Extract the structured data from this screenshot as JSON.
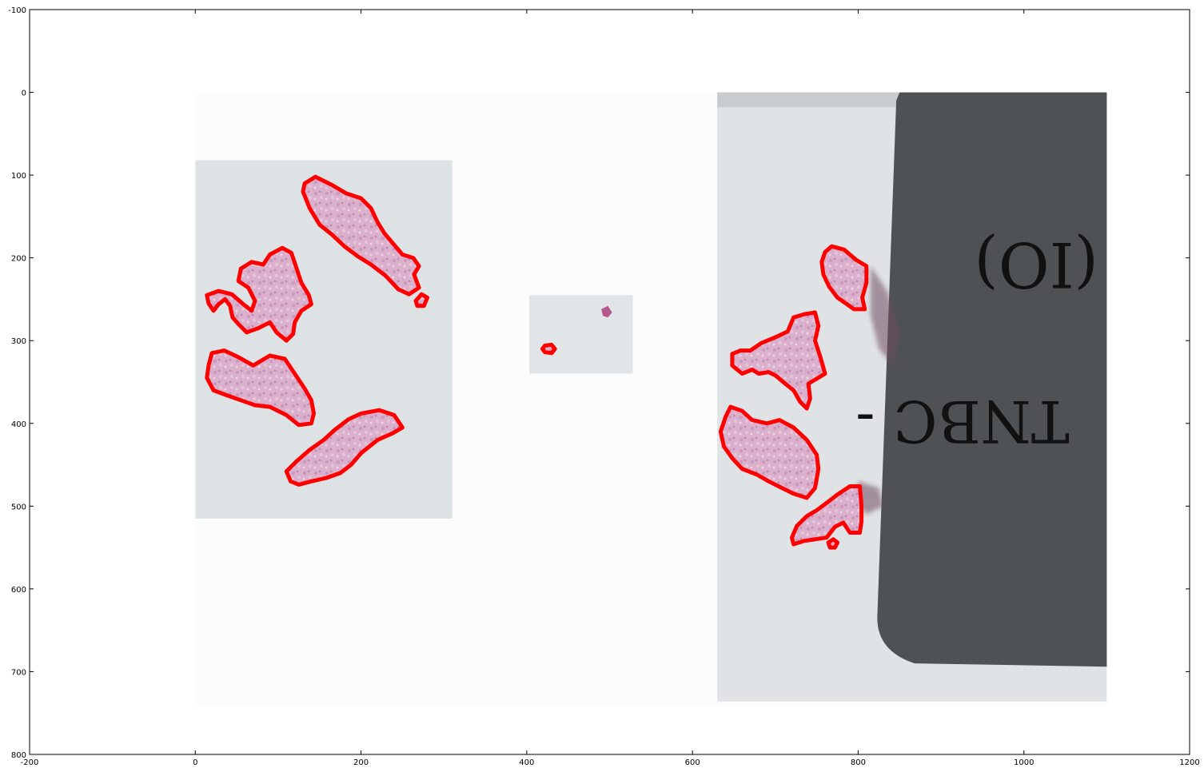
{
  "chart_data": {
    "type": "image",
    "title": "",
    "xlabel": "",
    "ylabel": "",
    "xlim": [
      -200,
      1200
    ],
    "ylim": [
      800,
      -100
    ],
    "x_ticks": [
      -200,
      0,
      200,
      400,
      600,
      800,
      1000,
      1200
    ],
    "y_ticks": [
      -100,
      0,
      100,
      200,
      300,
      400,
      500,
      600,
      700,
      800
    ],
    "grid": false,
    "contour_color": "#ff0000",
    "slide_label_text": "(IO)",
    "slide_label_text_2": "TNBC -",
    "images": [
      {
        "name": "left-tissue-image",
        "extent": [
          0,
          310,
          82,
          515
        ]
      },
      {
        "name": "middle-tissue-image",
        "extent": [
          403,
          528,
          245,
          340
        ]
      },
      {
        "name": "right-slide-image",
        "extent": [
          630,
          1100,
          0,
          736
        ]
      }
    ],
    "contours": [
      {
        "name": "left-contour-1",
        "points": [
          [
            132,
            110
          ],
          [
            145,
            102
          ],
          [
            165,
            112
          ],
          [
            182,
            122
          ],
          [
            200,
            128
          ],
          [
            212,
            140
          ],
          [
            220,
            157
          ],
          [
            228,
            170
          ],
          [
            238,
            182
          ],
          [
            250,
            196
          ],
          [
            263,
            200
          ],
          [
            270,
            210
          ],
          [
            264,
            220
          ],
          [
            270,
            236
          ],
          [
            258,
            244
          ],
          [
            245,
            238
          ],
          [
            230,
            222
          ],
          [
            212,
            208
          ],
          [
            196,
            198
          ],
          [
            180,
            186
          ],
          [
            165,
            172
          ],
          [
            150,
            160
          ],
          [
            138,
            140
          ],
          [
            130,
            120
          ]
        ]
      },
      {
        "name": "left-contour-2",
        "points": [
          [
            266,
            252
          ],
          [
            273,
            244
          ],
          [
            280,
            248
          ],
          [
            276,
            258
          ],
          [
            268,
            258
          ]
        ]
      },
      {
        "name": "left-contour-3",
        "points": [
          [
            55,
            213
          ],
          [
            68,
            205
          ],
          [
            82,
            208
          ],
          [
            90,
            196
          ],
          [
            105,
            188
          ],
          [
            116,
            194
          ],
          [
            122,
            212
          ],
          [
            128,
            230
          ],
          [
            137,
            245
          ],
          [
            140,
            256
          ],
          [
            128,
            264
          ],
          [
            120,
            278
          ],
          [
            118,
            292
          ],
          [
            110,
            300
          ],
          [
            98,
            290
          ],
          [
            90,
            278
          ],
          [
            76,
            285
          ],
          [
            62,
            290
          ],
          [
            52,
            280
          ],
          [
            45,
            272
          ],
          [
            42,
            258
          ],
          [
            36,
            250
          ],
          [
            28,
            256
          ],
          [
            22,
            264
          ],
          [
            16,
            255
          ],
          [
            14,
            245
          ],
          [
            28,
            240
          ],
          [
            44,
            244
          ],
          [
            58,
            256
          ],
          [
            68,
            264
          ],
          [
            72,
            252
          ],
          [
            64,
            236
          ],
          [
            52,
            228
          ]
        ]
      },
      {
        "name": "left-contour-4",
        "points": [
          [
            20,
            315
          ],
          [
            35,
            312
          ],
          [
            52,
            320
          ],
          [
            70,
            330
          ],
          [
            90,
            318
          ],
          [
            108,
            322
          ],
          [
            120,
            340
          ],
          [
            132,
            358
          ],
          [
            140,
            372
          ],
          [
            143,
            388
          ],
          [
            140,
            400
          ],
          [
            125,
            402
          ],
          [
            110,
            390
          ],
          [
            90,
            380
          ],
          [
            72,
            378
          ],
          [
            55,
            372
          ],
          [
            38,
            366
          ],
          [
            22,
            360
          ],
          [
            14,
            345
          ],
          [
            16,
            330
          ]
        ]
      },
      {
        "name": "left-contour-5",
        "points": [
          [
            115,
            470
          ],
          [
            110,
            458
          ],
          [
            122,
            446
          ],
          [
            138,
            432
          ],
          [
            155,
            420
          ],
          [
            168,
            408
          ],
          [
            185,
            395
          ],
          [
            200,
            388
          ],
          [
            222,
            384
          ],
          [
            240,
            390
          ],
          [
            250,
            405
          ],
          [
            238,
            412
          ],
          [
            220,
            420
          ],
          [
            200,
            436
          ],
          [
            188,
            450
          ],
          [
            175,
            460
          ],
          [
            158,
            466
          ],
          [
            140,
            470
          ],
          [
            125,
            474
          ]
        ]
      },
      {
        "name": "middle-contour",
        "points": [
          [
            422,
            306
          ],
          [
            430,
            305
          ],
          [
            434,
            310
          ],
          [
            430,
            315
          ],
          [
            422,
            314
          ],
          [
            419,
            310
          ]
        ]
      },
      {
        "name": "right-contour-1",
        "points": [
          [
            760,
            193
          ],
          [
            768,
            186
          ],
          [
            783,
            190
          ],
          [
            797,
            202
          ],
          [
            810,
            210
          ],
          [
            810,
            230
          ],
          [
            805,
            248
          ],
          [
            808,
            262
          ],
          [
            795,
            262
          ],
          [
            785,
            255
          ],
          [
            775,
            248
          ],
          [
            765,
            235
          ],
          [
            758,
            220
          ],
          [
            756,
            205
          ]
        ]
      },
      {
        "name": "right-contour-2",
        "points": [
          [
            670,
            312
          ],
          [
            683,
            303
          ],
          [
            700,
            296
          ],
          [
            715,
            289
          ],
          [
            722,
            272
          ],
          [
            735,
            268
          ],
          [
            748,
            266
          ],
          [
            752,
            282
          ],
          [
            748,
            300
          ],
          [
            755,
            322
          ],
          [
            760,
            340
          ],
          [
            750,
            346
          ],
          [
            740,
            352
          ],
          [
            742,
            370
          ],
          [
            738,
            382
          ],
          [
            730,
            374
          ],
          [
            722,
            360
          ],
          [
            712,
            352
          ],
          [
            700,
            342
          ],
          [
            692,
            338
          ],
          [
            680,
            340
          ],
          [
            672,
            335
          ],
          [
            660,
            340
          ],
          [
            648,
            330
          ],
          [
            648,
            316
          ],
          [
            658,
            312
          ]
        ]
      },
      {
        "name": "right-contour-3",
        "points": [
          [
            646,
            380
          ],
          [
            660,
            385
          ],
          [
            672,
            396
          ],
          [
            690,
            400
          ],
          [
            705,
            396
          ],
          [
            722,
            405
          ],
          [
            738,
            420
          ],
          [
            750,
            438
          ],
          [
            752,
            455
          ],
          [
            748,
            478
          ],
          [
            738,
            490
          ],
          [
            722,
            485
          ],
          [
            708,
            478
          ],
          [
            692,
            470
          ],
          [
            678,
            462
          ],
          [
            660,
            455
          ],
          [
            648,
            442
          ],
          [
            638,
            428
          ],
          [
            634,
            410
          ],
          [
            640,
            392
          ]
        ]
      },
      {
        "name": "right-contour-4",
        "points": [
          [
            720,
            538
          ],
          [
            726,
            524
          ],
          [
            738,
            512
          ],
          [
            750,
            505
          ],
          [
            762,
            496
          ],
          [
            775,
            486
          ],
          [
            790,
            476
          ],
          [
            802,
            476
          ],
          [
            804,
            500
          ],
          [
            804,
            518
          ],
          [
            802,
            532
          ],
          [
            790,
            532
          ],
          [
            782,
            520
          ],
          [
            772,
            525
          ],
          [
            762,
            538
          ],
          [
            748,
            540
          ],
          [
            735,
            542
          ],
          [
            722,
            546
          ]
        ]
      },
      {
        "name": "right-contour-5",
        "points": [
          [
            764,
            544
          ],
          [
            770,
            540
          ],
          [
            775,
            544
          ],
          [
            772,
            550
          ],
          [
            766,
            550
          ]
        ]
      }
    ]
  }
}
